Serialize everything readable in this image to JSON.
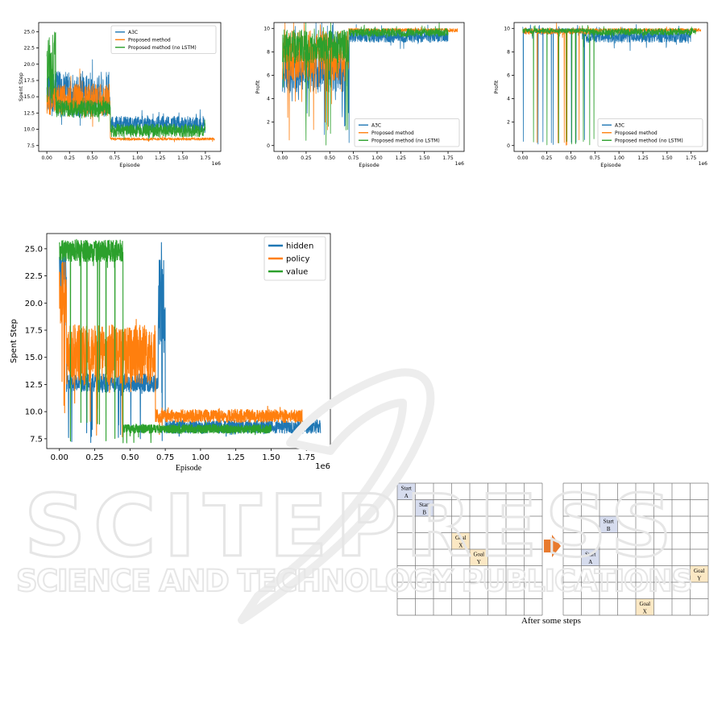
{
  "chart_data": [
    {
      "type": "line",
      "xlabel": "Episode",
      "ylabel": "Spent Step",
      "x_scale_label": "1e6",
      "xlim": [
        -0.09,
        1.92
      ],
      "ylim": [
        6.6,
        26.4
      ],
      "xticks": [
        0.0,
        0.25,
        0.5,
        0.75,
        1.0,
        1.25,
        1.5,
        1.75
      ],
      "xtick_labels": [
        "0.00",
        "0.25",
        "0.50",
        "0.75",
        "1.00",
        "1.25",
        "1.50",
        "1.75"
      ],
      "yticks": [
        7.5,
        10.0,
        12.5,
        15.0,
        17.5,
        20.0,
        22.5,
        25.0
      ],
      "ytick_labels": [
        "7.5",
        "10.0",
        "12.5",
        "15.0",
        "17.5",
        "20.0",
        "22.5",
        "25.0"
      ],
      "legend": "top-right",
      "series": [
        {
          "name": "A3C",
          "color": "#1f77b4",
          "segments": [
            [
              0.0,
              0.7,
              11.8,
              19.0,
              2.5
            ],
            [
              0.7,
              1.75,
              9.5,
              12.0,
              1.5
            ]
          ]
        },
        {
          "name": "Proposed method",
          "color": "#ff7f0e",
          "segments": [
            [
              0.0,
              0.7,
              12.0,
              17.0,
              3.0
            ],
            [
              0.7,
              1.85,
              8.3,
              8.7,
              0.3
            ]
          ]
        },
        {
          "name": "Proposed method (no LSTM)",
          "color": "#2ca02c",
          "segments": [
            [
              0.0,
              0.1,
              14.0,
              25.0,
              1.5
            ],
            [
              0.1,
              0.7,
              11.8,
              14.5,
              1.2
            ],
            [
              0.7,
              1.75,
              8.8,
              10.8,
              0.8
            ]
          ]
        }
      ]
    },
    {
      "type": "line",
      "xlabel": "Episode",
      "ylabel": "Profit",
      "x_scale_label": "1e6",
      "xlim": [
        -0.09,
        1.92
      ],
      "ylim": [
        -0.5,
        10.5
      ],
      "xticks": [
        0.0,
        0.25,
        0.5,
        0.75,
        1.0,
        1.25,
        1.5,
        1.75
      ],
      "xtick_labels": [
        "0.00",
        "0.25",
        "0.50",
        "0.75",
        "1.00",
        "1.25",
        "1.50",
        "1.75"
      ],
      "yticks": [
        0,
        2,
        4,
        6,
        8,
        10
      ],
      "ytick_labels": [
        "0",
        "2",
        "4",
        "6",
        "8",
        "10"
      ],
      "legend": "lower-right",
      "series": [
        {
          "name": "A3C",
          "color": "#1f77b4",
          "segments": [
            [
              0.0,
              0.7,
              4.5,
              8.0,
              4.0
            ],
            [
              0.7,
              1.75,
              8.8,
              9.8,
              0.8
            ]
          ]
        },
        {
          "name": "Proposed method",
          "color": "#ff7f0e",
          "segments": [
            [
              0.0,
              0.7,
              5.5,
              9.8,
              4.0
            ],
            [
              0.7,
              1.85,
              9.7,
              10.0,
              0.2
            ]
          ]
        },
        {
          "name": "Proposed method (no LSTM)",
          "color": "#2ca02c",
          "segments": [
            [
              0.0,
              0.7,
              7.0,
              9.9,
              3.0
            ],
            [
              0.7,
              1.75,
              9.3,
              10.0,
              0.6
            ]
          ]
        }
      ]
    },
    {
      "type": "line",
      "xlabel": "Episode",
      "ylabel": "Profit",
      "x_scale_label": "1e6",
      "xlim": [
        -0.09,
        1.92
      ],
      "ylim": [
        -0.5,
        10.5
      ],
      "xticks": [
        0.0,
        0.25,
        0.5,
        0.75,
        1.0,
        1.25,
        1.5,
        1.75
      ],
      "xtick_labels": [
        "0.00",
        "0.25",
        "0.50",
        "0.75",
        "1.00",
        "1.25",
        "1.50",
        "1.75"
      ],
      "yticks": [
        0,
        2,
        4,
        6,
        8,
        10
      ],
      "ytick_labels": [
        "0",
        "2",
        "4",
        "6",
        "8",
        "10"
      ],
      "legend": "lower-right",
      "series": [
        {
          "name": "A3C",
          "color": "#1f77b4",
          "segments": [
            [
              0.0,
              0.62,
              9.6,
              10.0,
              0.5
            ],
            [
              0.62,
              1.75,
              8.8,
              9.8,
              0.8
            ]
          ]
        },
        {
          "name": "Proposed method",
          "color": "#ff7f0e",
          "segments": [
            [
              0.0,
              0.7,
              9.5,
              10.0,
              0.8
            ],
            [
              0.7,
              1.85,
              9.7,
              10.0,
              0.2
            ]
          ]
        },
        {
          "name": "Proposed method (no LSTM)",
          "color": "#2ca02c",
          "segments": [
            [
              0.0,
              0.7,
              9.6,
              10.0,
              0.6
            ],
            [
              0.7,
              1.8,
              9.4,
              10.0,
              0.4
            ]
          ]
        }
      ]
    },
    {
      "type": "line",
      "xlabel": "Episode",
      "ylabel": "Spent Step",
      "x_scale_label": "1e6",
      "xlim": [
        -0.09,
        1.92
      ],
      "ylim": [
        6.6,
        26.4
      ],
      "xticks": [
        0.0,
        0.25,
        0.5,
        0.75,
        1.0,
        1.25,
        1.5,
        1.75
      ],
      "xtick_labels": [
        "0.00",
        "0.25",
        "0.50",
        "0.75",
        "1.00",
        "1.25",
        "1.50",
        "1.75"
      ],
      "yticks": [
        7.5,
        10.0,
        12.5,
        15.0,
        17.5,
        20.0,
        22.5,
        25.0
      ],
      "ytick_labels": [
        "7.5",
        "10.0",
        "12.5",
        "15.0",
        "17.5",
        "20.0",
        "22.5",
        "25.0"
      ],
      "legend": "top-right",
      "series": [
        {
          "name": "hidden",
          "color": "#1f77b4",
          "segments": [
            [
              0.0,
              0.05,
              19.0,
              25.5,
              2.0
            ],
            [
              0.05,
              0.7,
              11.8,
              13.5,
              0.8
            ],
            [
              0.7,
              0.75,
              15.0,
              24.0,
              3.0
            ],
            [
              0.75,
              1.85,
              8.0,
              9.2,
              0.5
            ]
          ]
        },
        {
          "name": "policy",
          "color": "#ff7f0e",
          "segments": [
            [
              0.0,
              0.05,
              18.0,
              24.0,
              2.0
            ],
            [
              0.05,
              0.68,
              12.5,
              18.0,
              2.0
            ],
            [
              0.68,
              1.72,
              9.0,
              10.2,
              0.6
            ]
          ]
        },
        {
          "name": "value",
          "color": "#2ca02c",
          "segments": [
            [
              0.0,
              0.45,
              23.8,
              25.8,
              0.8
            ],
            [
              0.45,
              1.5,
              8.0,
              8.8,
              0.3
            ]
          ]
        }
      ]
    }
  ],
  "grid_figure": {
    "caption": "After some steps",
    "rows": 8,
    "cols": 8,
    "left_grid": {
      "cells": [
        {
          "row": 0,
          "col": 0,
          "line1": "Start",
          "line2": "A",
          "kind": "start"
        },
        {
          "row": 1,
          "col": 1,
          "line1": "Start",
          "line2": "B",
          "kind": "start"
        },
        {
          "row": 3,
          "col": 3,
          "line1": "Goal",
          "line2": "X",
          "kind": "goal"
        },
        {
          "row": 4,
          "col": 4,
          "line1": "Goal",
          "line2": "Y",
          "kind": "goal"
        }
      ]
    },
    "right_grid": {
      "cells": [
        {
          "row": 2,
          "col": 2,
          "line1": "Start",
          "line2": "B",
          "kind": "start"
        },
        {
          "row": 4,
          "col": 1,
          "line1": "Start",
          "line2": "A",
          "kind": "start"
        },
        {
          "row": 5,
          "col": 7,
          "line1": "Goal",
          "line2": "Y",
          "kind": "goal"
        },
        {
          "row": 7,
          "col": 4,
          "line1": "Goal",
          "line2": "X",
          "kind": "goal"
        }
      ]
    },
    "colors": {
      "start": "#d6dcee",
      "goal": "#fbe8c4",
      "arrow": "#e87a2e"
    }
  },
  "watermark": {
    "line1": "SCITEPRESS",
    "line2": "SCIENCE AND TECHNOLOGY PUBLICATIONS"
  }
}
